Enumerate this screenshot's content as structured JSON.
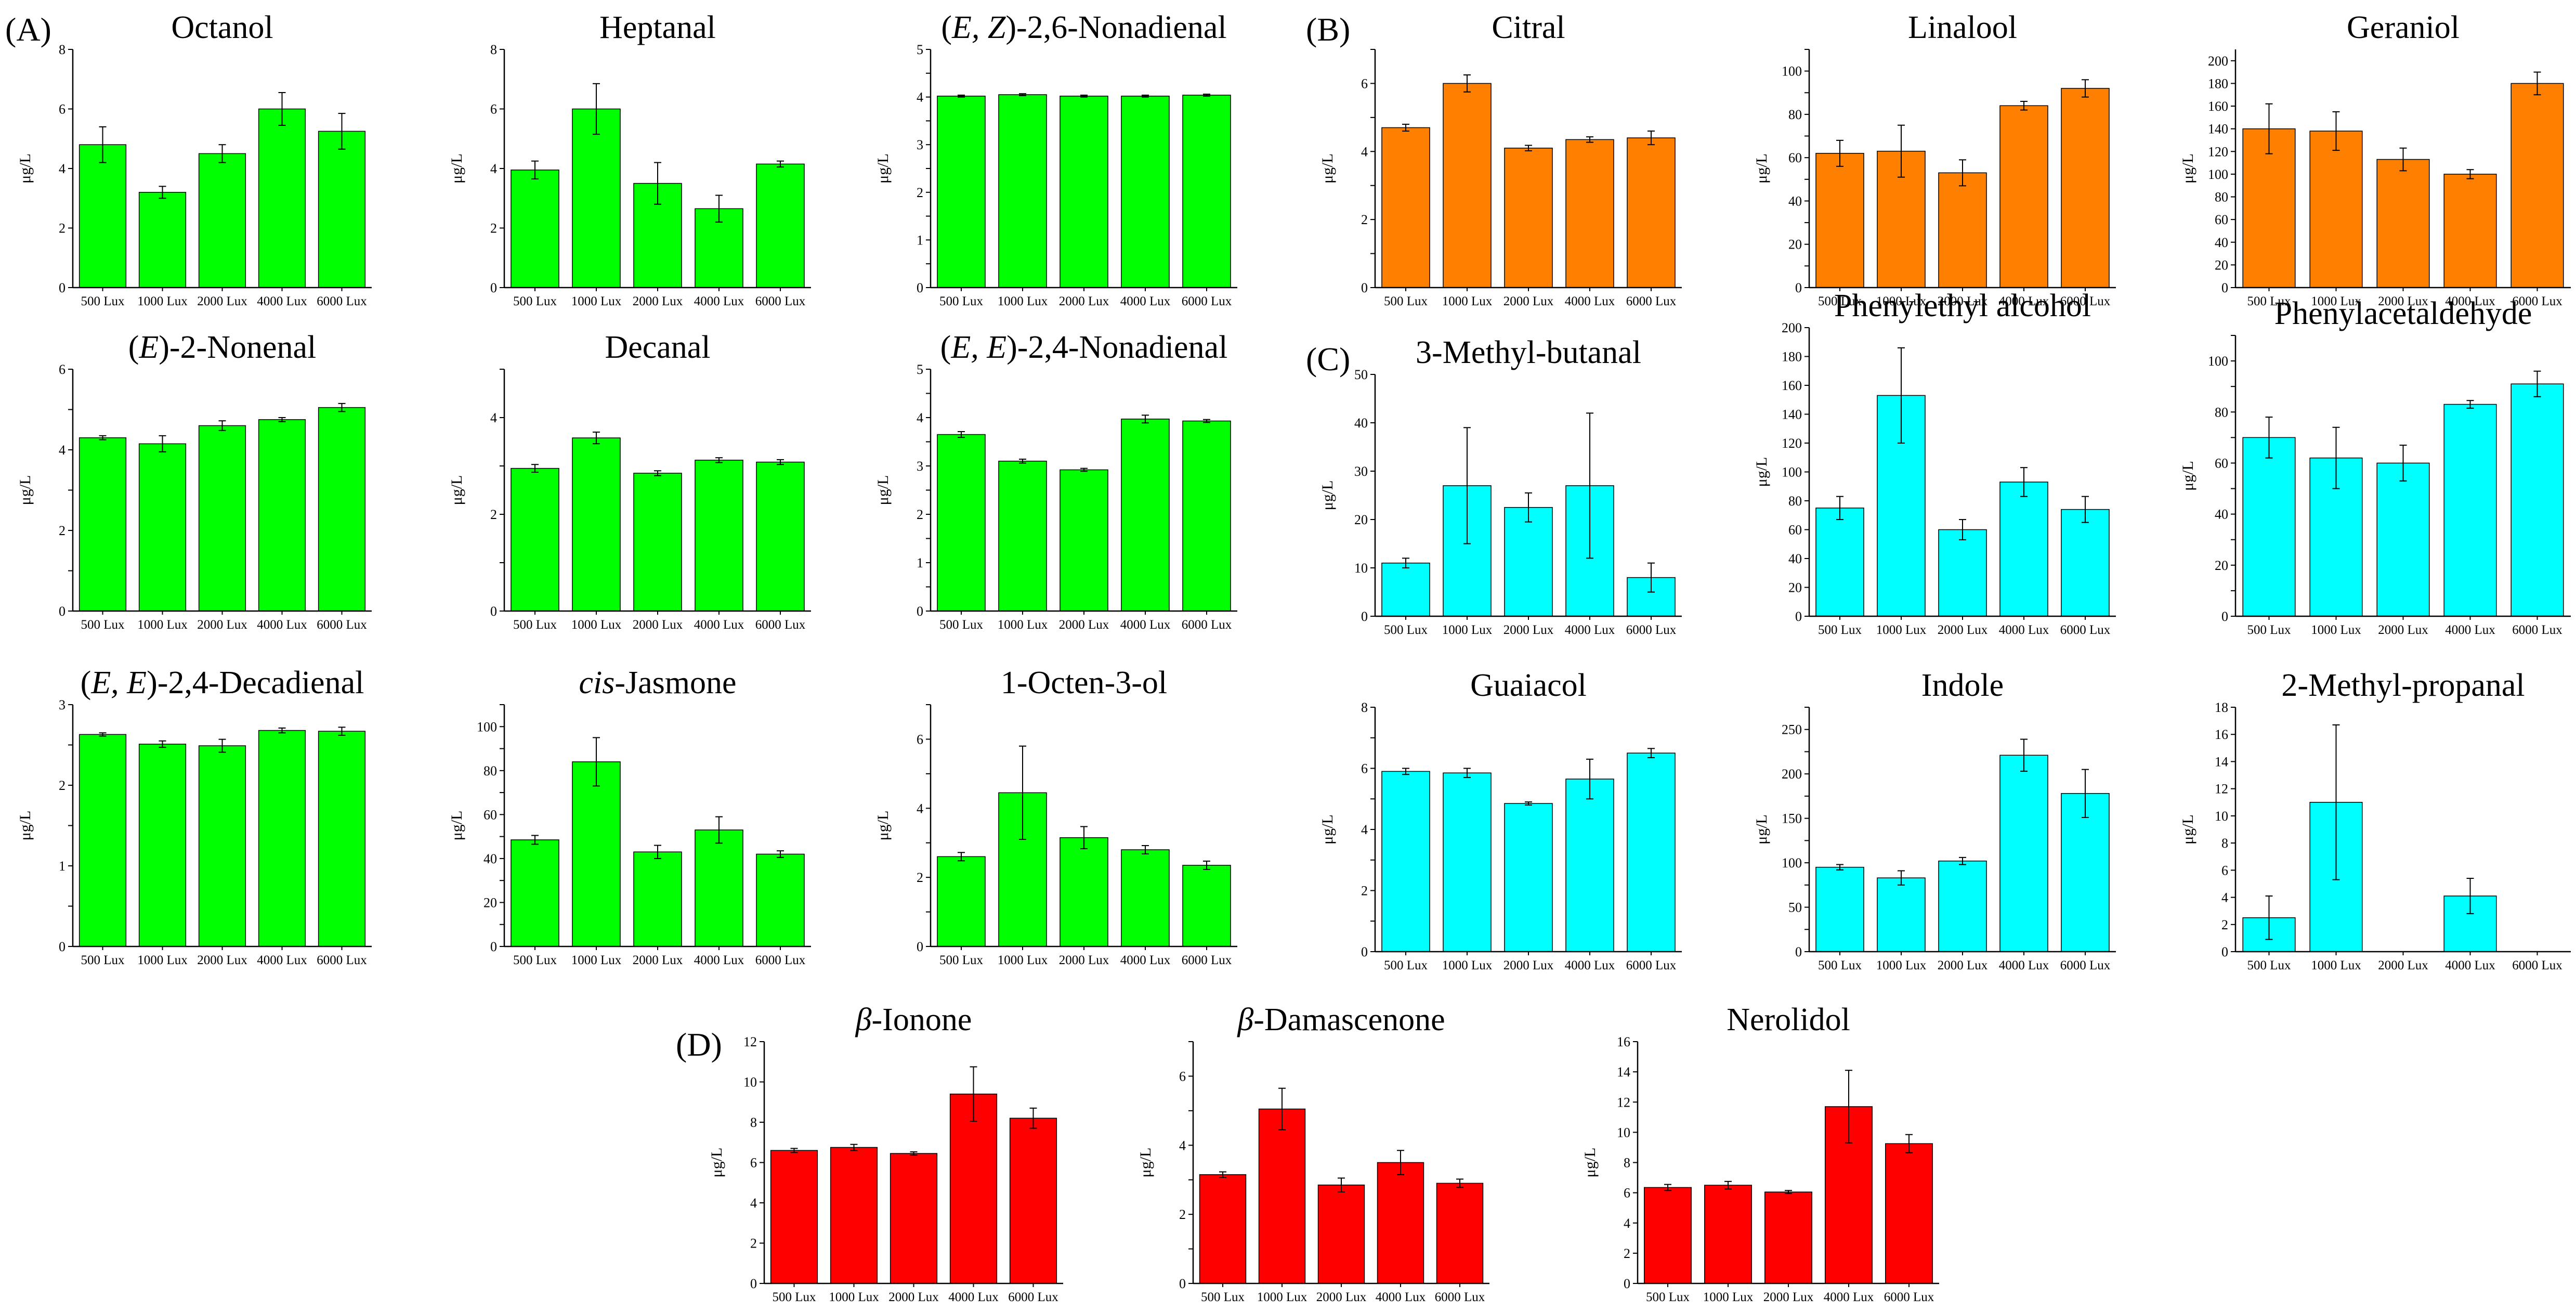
{
  "panels": [
    {
      "label": "(A)"
    },
    {
      "label": "(B)"
    },
    {
      "label": "(C)"
    },
    {
      "label": "(D)"
    }
  ],
  "colors": {
    "green": "#00ff00",
    "orange": "#ff8000",
    "cyan": "#00ffff",
    "red": "#ff0000",
    "axis": "#000000"
  },
  "chart_data": [
    {
      "type": "bar",
      "title": [
        {
          "text": "Octanol",
          "italic": false
        }
      ],
      "ylabel": "μg/L",
      "color": "green",
      "categories": [
        "500 Lux",
        "1000 Lux",
        "2000 Lux",
        "4000 Lux",
        "6000 Lux"
      ],
      "values": [
        4.8,
        3.2,
        4.5,
        6.0,
        5.25
      ],
      "errors": [
        0.6,
        0.2,
        0.3,
        0.55,
        0.6
      ],
      "ylim": [
        0,
        8
      ],
      "yticks": [
        0,
        2,
        4,
        6,
        8
      ]
    },
    {
      "type": "bar",
      "title": [
        {
          "text": "Heptanal",
          "italic": false
        }
      ],
      "ylabel": "μg/L",
      "color": "green",
      "categories": [
        "500 Lux",
        "1000 Lux",
        "2000 Lux",
        "4000 Lux",
        "6000 Lux"
      ],
      "values": [
        3.95,
        6.0,
        3.5,
        2.65,
        4.15
      ],
      "errors": [
        0.3,
        0.85,
        0.7,
        0.45,
        0.1
      ],
      "ylim": [
        0,
        8
      ],
      "yticks": [
        0,
        2,
        4,
        6,
        8
      ]
    },
    {
      "type": "bar",
      "title": [
        {
          "text": "(",
          "italic": false
        },
        {
          "text": "E, Z",
          "italic": true
        },
        {
          "text": ")-2,6-Nonadienal",
          "italic": false
        }
      ],
      "ylabel": "μg/L",
      "color": "green",
      "categories": [
        "500 Lux",
        "1000 Lux",
        "2000 Lux",
        "4000 Lux",
        "6000 Lux"
      ],
      "values": [
        4.02,
        4.05,
        4.02,
        4.02,
        4.04
      ],
      "errors": [
        0.02,
        0.02,
        0.02,
        0.02,
        0.02
      ],
      "ylim": [
        0,
        5
      ],
      "yticks": [
        0,
        0.5,
        1,
        1.5,
        2,
        2.5,
        3,
        3.5,
        4,
        4.5,
        5
      ],
      "ytick_labels": [
        "0",
        "",
        "1",
        "",
        "2",
        "",
        "3",
        "",
        "4",
        "",
        "5"
      ]
    },
    {
      "type": "bar",
      "title": [
        {
          "text": "Citral",
          "italic": false
        }
      ],
      "ylabel": "μg/L",
      "color": "orange",
      "categories": [
        "500 Lux",
        "1000 Lux",
        "2000 Lux",
        "4000 Lux",
        "6000 Lux"
      ],
      "values": [
        4.7,
        6.0,
        4.1,
        4.35,
        4.4
      ],
      "errors": [
        0.1,
        0.25,
        0.08,
        0.08,
        0.2
      ],
      "ylim": [
        0,
        7
      ],
      "yticks": [
        0,
        1,
        2,
        3,
        4,
        5,
        6,
        7
      ],
      "ytick_labels": [
        "0",
        "",
        "2",
        "",
        "4",
        "",
        "6",
        ""
      ]
    },
    {
      "type": "bar",
      "title": [
        {
          "text": "Linalool",
          "italic": false
        }
      ],
      "ylabel": "μg/L",
      "color": "orange",
      "categories": [
        "500 Lux",
        "1000 Lux",
        "2000 Lux",
        "4000 Lux",
        "6000 Lux"
      ],
      "values": [
        62,
        63,
        53,
        84,
        92
      ],
      "errors": [
        6,
        12,
        6,
        2,
        4
      ],
      "ylim": [
        0,
        110
      ],
      "yticks": [
        0,
        10,
        20,
        30,
        40,
        50,
        60,
        70,
        80,
        90,
        100,
        110
      ],
      "ytick_labels": [
        "0",
        "",
        "20",
        "",
        "40",
        "",
        "60",
        "",
        "80",
        "",
        "100",
        ""
      ]
    },
    {
      "type": "bar",
      "title": [
        {
          "text": "Geraniol",
          "italic": false
        }
      ],
      "ylabel": "μg/L",
      "color": "orange",
      "categories": [
        "500 Lux",
        "1000 Lux",
        "2000 Lux",
        "4000 Lux",
        "6000 Lux"
      ],
      "values": [
        140,
        138,
        113,
        100,
        180
      ],
      "errors": [
        22,
        17,
        10,
        4,
        10
      ],
      "ylim": [
        0,
        210
      ],
      "yticks": [
        0,
        20,
        40,
        60,
        80,
        100,
        120,
        140,
        160,
        180,
        200
      ]
    },
    {
      "type": "bar",
      "title": [
        {
          "text": "(",
          "italic": false
        },
        {
          "text": "E",
          "italic": true
        },
        {
          "text": ")-2-Nonenal",
          "italic": false
        }
      ],
      "ylabel": "μg/L",
      "color": "green",
      "categories": [
        "500 Lux",
        "1000 Lux",
        "2000 Lux",
        "4000 Lux",
        "6000 Lux"
      ],
      "values": [
        4.3,
        4.15,
        4.6,
        4.75,
        5.05
      ],
      "errors": [
        0.05,
        0.2,
        0.12,
        0.05,
        0.1
      ],
      "ylim": [
        0,
        6
      ],
      "yticks": [
        0,
        1,
        2,
        3,
        4,
        5,
        6
      ],
      "ytick_labels": [
        "0",
        "",
        "2",
        "",
        "4",
        "",
        "6"
      ]
    },
    {
      "type": "bar",
      "title": [
        {
          "text": "Decanal",
          "italic": false
        }
      ],
      "ylabel": "μg/L",
      "color": "green",
      "categories": [
        "500 Lux",
        "1000 Lux",
        "2000 Lux",
        "4000 Lux",
        "6000 Lux"
      ],
      "values": [
        2.95,
        3.58,
        2.85,
        3.12,
        3.08
      ],
      "errors": [
        0.08,
        0.12,
        0.05,
        0.05,
        0.05
      ],
      "ylim": [
        0,
        5
      ],
      "yticks": [
        0,
        1,
        2,
        3,
        4,
        5
      ],
      "ytick_labels": [
        "0",
        "",
        "2",
        "",
        "4",
        ""
      ]
    },
    {
      "type": "bar",
      "title": [
        {
          "text": "(",
          "italic": false
        },
        {
          "text": "E, E",
          "italic": true
        },
        {
          "text": ")-2,4-Nonadienal",
          "italic": false
        }
      ],
      "ylabel": "μg/L",
      "color": "green",
      "categories": [
        "500 Lux",
        "1000 Lux",
        "2000 Lux",
        "4000 Lux",
        "6000 Lux"
      ],
      "values": [
        3.65,
        3.1,
        2.92,
        3.97,
        3.93
      ],
      "errors": [
        0.06,
        0.04,
        0.03,
        0.08,
        0.03
      ],
      "ylim": [
        0,
        5
      ],
      "yticks": [
        0,
        0.5,
        1,
        1.5,
        2,
        2.5,
        3,
        3.5,
        4,
        4.5,
        5
      ],
      "ytick_labels": [
        "0",
        "",
        "1",
        "",
        "2",
        "",
        "3",
        "",
        "4",
        "",
        "5"
      ]
    },
    {
      "type": "bar",
      "title": [
        {
          "text": "3-Methyl-butanal",
          "italic": false
        }
      ],
      "ylabel": "μg/L",
      "color": "cyan",
      "categories": [
        "500 Lux",
        "1000 Lux",
        "2000 Lux",
        "4000 Lux",
        "6000 Lux"
      ],
      "values": [
        11,
        27,
        22.5,
        27,
        8
      ],
      "errors": [
        1,
        12,
        3,
        15,
        3
      ],
      "ylim": [
        0,
        50
      ],
      "yticks": [
        0,
        10,
        20,
        30,
        40,
        50
      ]
    },
    {
      "type": "bar",
      "title": [
        {
          "text": "Phenylethyl alcohol",
          "italic": false
        }
      ],
      "ylabel": "μg/L",
      "color": "cyan",
      "categories": [
        "500 Lux",
        "1000 Lux",
        "2000 Lux",
        "4000 Lux",
        "6000 Lux"
      ],
      "values": [
        75,
        153,
        60,
        93,
        74
      ],
      "errors": [
        8,
        33,
        7,
        10,
        9
      ],
      "ylim": [
        0,
        200
      ],
      "yticks": [
        0,
        20,
        40,
        60,
        80,
        100,
        120,
        140,
        160,
        180,
        200
      ]
    },
    {
      "type": "bar",
      "title": [
        {
          "text": "Phenylacetaldehyde",
          "italic": false
        }
      ],
      "ylabel": "μg/L",
      "color": "cyan",
      "categories": [
        "500 Lux",
        "1000 Lux",
        "2000 Lux",
        "4000 Lux",
        "6000 Lux"
      ],
      "values": [
        70,
        62,
        60,
        83,
        91
      ],
      "errors": [
        8,
        12,
        7,
        1.5,
        5
      ],
      "ylim": [
        0,
        110
      ],
      "yticks": [
        0,
        10,
        20,
        30,
        40,
        50,
        60,
        70,
        80,
        90,
        100,
        110
      ],
      "ytick_labels": [
        "0",
        "",
        "20",
        "",
        "40",
        "",
        "60",
        "",
        "80",
        "",
        "100",
        ""
      ]
    },
    {
      "type": "bar",
      "title": [
        {
          "text": "(",
          "italic": false
        },
        {
          "text": "E, E",
          "italic": true
        },
        {
          "text": ")-2,4-Decadienal",
          "italic": false
        }
      ],
      "ylabel": "μg/L",
      "color": "green",
      "categories": [
        "500 Lux",
        "1000 Lux",
        "2000 Lux",
        "4000 Lux",
        "6000 Lux"
      ],
      "values": [
        2.63,
        2.51,
        2.49,
        2.68,
        2.67
      ],
      "errors": [
        0.02,
        0.04,
        0.08,
        0.03,
        0.05
      ],
      "ylim": [
        0,
        3
      ],
      "yticks": [
        0,
        0.5,
        1,
        1.5,
        2,
        2.5,
        3
      ],
      "ytick_labels": [
        "0",
        "",
        "1",
        "",
        "2",
        "",
        "3"
      ]
    },
    {
      "type": "bar",
      "title": [
        {
          "text": "cis",
          "italic": true
        },
        {
          "text": "-Jasmone",
          "italic": false
        }
      ],
      "ylabel": "μg/L",
      "color": "green",
      "categories": [
        "500 Lux",
        "1000 Lux",
        "2000 Lux",
        "4000 Lux",
        "6000 Lux"
      ],
      "values": [
        48.5,
        84,
        43,
        53,
        42
      ],
      "errors": [
        2,
        11,
        3,
        6,
        1.5
      ],
      "ylim": [
        0,
        110
      ],
      "yticks": [
        0,
        10,
        20,
        30,
        40,
        50,
        60,
        70,
        80,
        90,
        100,
        110
      ],
      "ytick_labels": [
        "0",
        "",
        "20",
        "",
        "40",
        "",
        "60",
        "",
        "80",
        "",
        "100",
        ""
      ]
    },
    {
      "type": "bar",
      "title": [
        {
          "text": "1-Octen-3-ol",
          "italic": false
        }
      ],
      "ylabel": "μg/L",
      "color": "green",
      "categories": [
        "500 Lux",
        "1000 Lux",
        "2000 Lux",
        "4000 Lux",
        "6000 Lux"
      ],
      "values": [
        2.6,
        4.45,
        3.15,
        2.8,
        2.35
      ],
      "errors": [
        0.12,
        1.35,
        0.32,
        0.12,
        0.12
      ],
      "ylim": [
        0,
        7
      ],
      "yticks": [
        0,
        1,
        2,
        3,
        4,
        5,
        6,
        7
      ],
      "ytick_labels": [
        "0",
        "",
        "2",
        "",
        "4",
        "",
        "6",
        ""
      ]
    },
    {
      "type": "bar",
      "title": [
        {
          "text": "Guaiacol",
          "italic": false
        }
      ],
      "ylabel": "μg/L",
      "color": "cyan",
      "categories": [
        "500 Lux",
        "1000 Lux",
        "2000 Lux",
        "4000 Lux",
        "6000 Lux"
      ],
      "values": [
        5.9,
        5.85,
        4.85,
        5.65,
        6.5
      ],
      "errors": [
        0.1,
        0.15,
        0.05,
        0.65,
        0.15
      ],
      "ylim": [
        0,
        8
      ],
      "yticks": [
        0,
        1,
        2,
        3,
        4,
        5,
        6,
        7,
        8
      ],
      "ytick_labels": [
        "0",
        "",
        "2",
        "",
        "4",
        "",
        "6",
        "",
        "8"
      ]
    },
    {
      "type": "bar",
      "title": [
        {
          "text": "Indole",
          "italic": false
        }
      ],
      "ylabel": "μg/L",
      "color": "cyan",
      "categories": [
        "500 Lux",
        "1000 Lux",
        "2000 Lux",
        "4000 Lux",
        "6000 Lux"
      ],
      "values": [
        95,
        83,
        102,
        221,
        178
      ],
      "errors": [
        3,
        8,
        4,
        18,
        27
      ],
      "ylim": [
        0,
        275
      ],
      "yticks": [
        0,
        25,
        50,
        75,
        100,
        125,
        150,
        175,
        200,
        225,
        250,
        275
      ],
      "ytick_labels": [
        "0",
        "",
        "50",
        "",
        "100",
        "",
        "150",
        "",
        "200",
        "",
        "250",
        ""
      ]
    },
    {
      "type": "bar",
      "title": [
        {
          "text": "2-Methyl-propanal",
          "italic": false
        }
      ],
      "ylabel": "μg/L",
      "color": "cyan",
      "categories": [
        "500 Lux",
        "1000 Lux",
        "2000 Lux",
        "4000 Lux",
        "6000 Lux"
      ],
      "values": [
        2.5,
        11,
        0,
        4.1,
        0
      ],
      "errors": [
        1.6,
        5.7,
        0,
        1.3,
        0
      ],
      "ylim": [
        0,
        18
      ],
      "yticks": [
        0,
        2,
        4,
        6,
        8,
        10,
        12,
        14,
        16,
        18
      ]
    },
    {
      "type": "bar",
      "title": [
        {
          "text": "β",
          "italic": true
        },
        {
          "text": "-Ionone",
          "italic": false
        }
      ],
      "ylabel": "μg/L",
      "color": "red",
      "categories": [
        "500 Lux",
        "1000 Lux",
        "2000 Lux",
        "4000 Lux",
        "6000 Lux"
      ],
      "values": [
        6.6,
        6.75,
        6.45,
        9.4,
        8.2
      ],
      "errors": [
        0.1,
        0.15,
        0.08,
        1.35,
        0.5
      ],
      "ylim": [
        0,
        12
      ],
      "yticks": [
        0,
        2,
        4,
        6,
        8,
        10,
        12
      ]
    },
    {
      "type": "bar",
      "title": [
        {
          "text": "β",
          "italic": true
        },
        {
          "text": "-Damascenone",
          "italic": false
        }
      ],
      "ylabel": "μg/L",
      "color": "red",
      "categories": [
        "500 Lux",
        "1000 Lux",
        "2000 Lux",
        "4000 Lux",
        "6000 Lux"
      ],
      "values": [
        3.15,
        5.05,
        2.85,
        3.5,
        2.9
      ],
      "errors": [
        0.08,
        0.6,
        0.2,
        0.35,
        0.12
      ],
      "ylim": [
        0,
        7
      ],
      "yticks": [
        0,
        1,
        2,
        3,
        4,
        5,
        6,
        7
      ],
      "ytick_labels": [
        "0",
        "",
        "2",
        "",
        "4",
        "",
        "6",
        ""
      ]
    },
    {
      "type": "bar",
      "title": [
        {
          "text": "Nerolidol",
          "italic": false
        }
      ],
      "ylabel": "μg/L",
      "color": "red",
      "categories": [
        "500 Lux",
        "1000 Lux",
        "2000 Lux",
        "4000 Lux",
        "6000 Lux"
      ],
      "values": [
        6.35,
        6.5,
        6.05,
        11.7,
        9.25
      ],
      "errors": [
        0.2,
        0.25,
        0.1,
        2.4,
        0.6
      ],
      "ylim": [
        0,
        16
      ],
      "yticks": [
        0,
        2,
        4,
        6,
        8,
        10,
        12,
        14,
        16
      ]
    }
  ]
}
